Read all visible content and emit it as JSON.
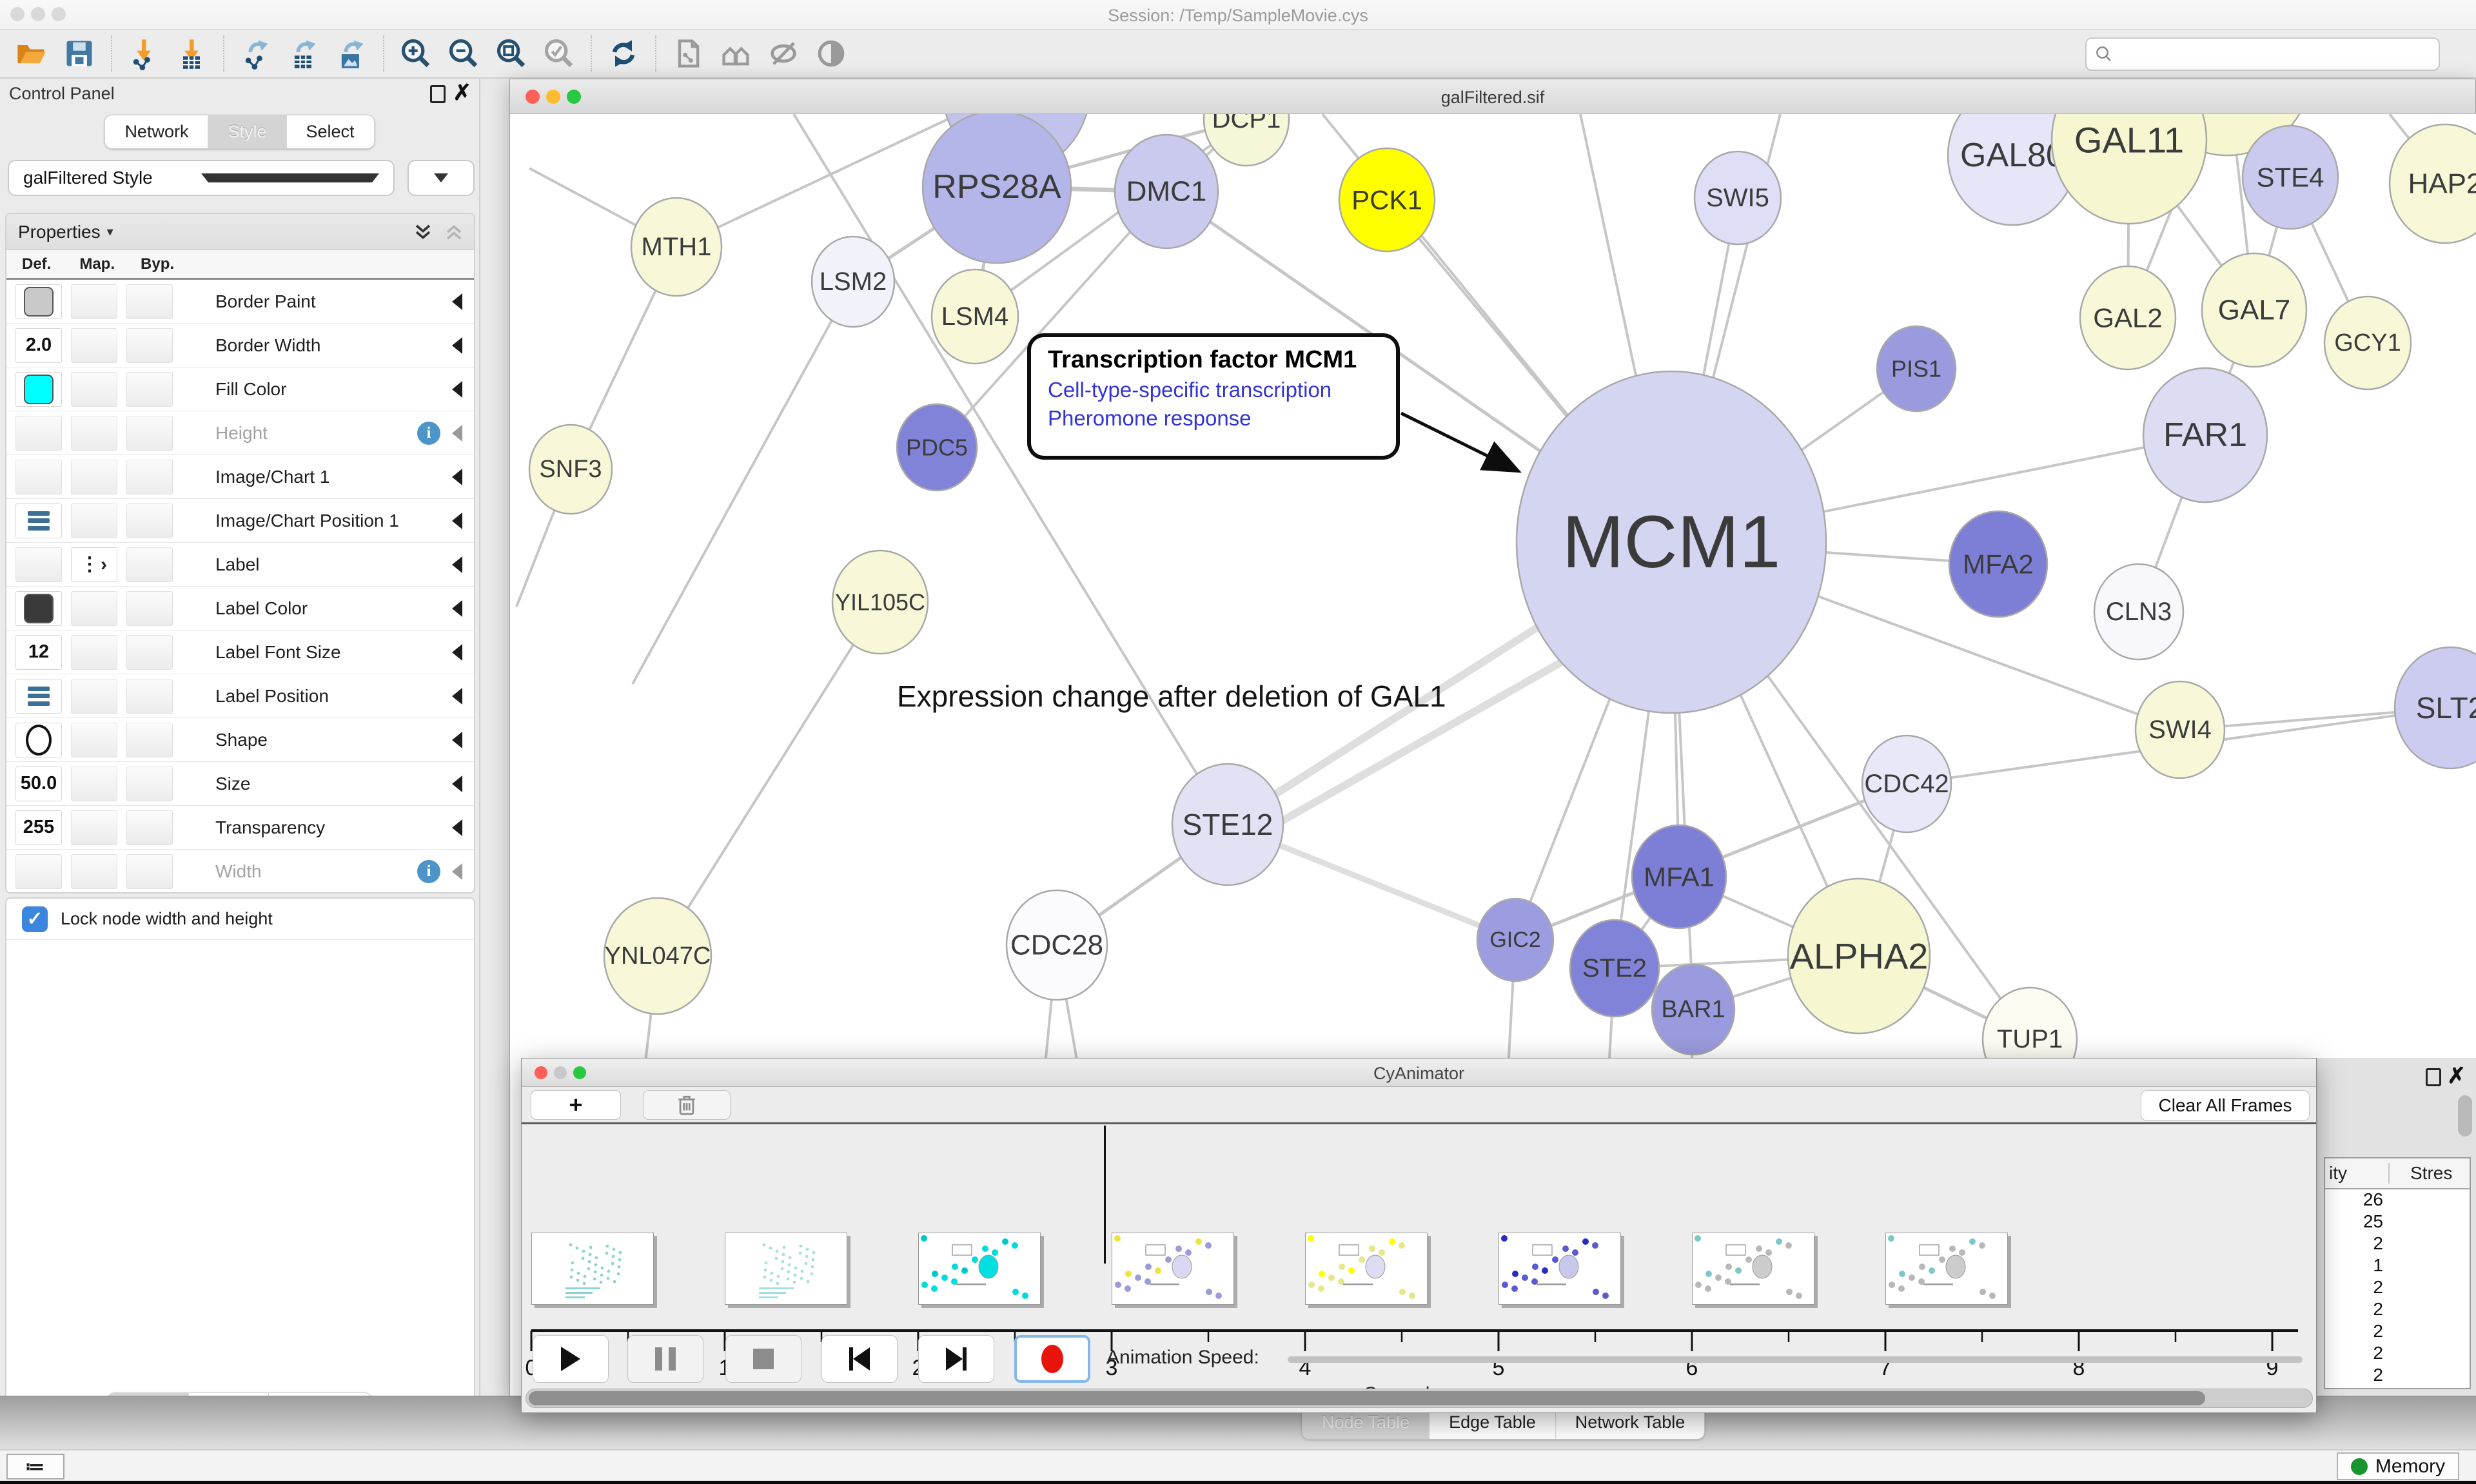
{
  "app": {
    "session_title": "Session: /Temp/SampleMovie.cys"
  },
  "toolbar": {
    "groups": [
      [
        "open-folder",
        "save"
      ],
      [
        "import-network",
        "import-table"
      ],
      [
        "export-network",
        "export-table",
        "export-image"
      ],
      [
        "zoom-in",
        "zoom-out",
        "zoom-fit",
        "zoom-selected"
      ],
      [
        "refresh"
      ],
      [
        "snapshot",
        "group-nodes",
        "hide-graphics",
        "show-graphics"
      ]
    ],
    "search_placeholder": ""
  },
  "control_panel": {
    "title": "Control Panel",
    "tabs": [
      "Network",
      "Style",
      "Select"
    ],
    "selected_tab": "Style",
    "style_name": "galFiltered Style",
    "properties": {
      "header": "Properties",
      "columns": [
        "Def.",
        "Map.",
        "Byp."
      ],
      "rows": [
        {
          "label": "Border Paint",
          "def": {
            "type": "swatch",
            "value": "#c9c9c9"
          }
        },
        {
          "label": "Border Width",
          "def": {
            "type": "text",
            "value": "2.0"
          }
        },
        {
          "label": "Fill Color",
          "def": {
            "type": "swatch",
            "value": "#00FFFF"
          }
        },
        {
          "label": "Height",
          "muted": true,
          "info": true
        },
        {
          "label": "Image/Chart 1"
        },
        {
          "label": "Image/Chart Position 1",
          "def": {
            "type": "position"
          }
        },
        {
          "label": "Label",
          "map": {
            "type": "discrete"
          }
        },
        {
          "label": "Label Color",
          "def": {
            "type": "swatch",
            "value": "#3a3a3a"
          }
        },
        {
          "label": "Label Font Size",
          "def": {
            "type": "text",
            "value": "12"
          }
        },
        {
          "label": "Label Position",
          "def": {
            "type": "position"
          }
        },
        {
          "label": "Shape",
          "def": {
            "type": "ellipse"
          }
        },
        {
          "label": "Size",
          "def": {
            "type": "text",
            "value": "50.0"
          }
        },
        {
          "label": "Transparency",
          "def": {
            "type": "text",
            "value": "255"
          }
        },
        {
          "label": "Width",
          "muted": true,
          "info": true
        }
      ],
      "lock_label": "Lock node width and height"
    },
    "bottom_tabs": [
      "Node",
      "Edge",
      "Network"
    ],
    "selected_bottom_tab": "Node"
  },
  "network_window": {
    "title": "galFiltered.sif",
    "annotation": {
      "title": "Transcription factor MCM1",
      "links": [
        "Cell-type-specific transcription",
        "Pheromone response"
      ]
    },
    "caption": "Expression change after deletion of GAL1",
    "label_color": "#3b3b3b",
    "edge_color": "#c6c6c6",
    "thick_edge_color": "#dedede",
    "nodes": [
      [
        "",
        1575,
        134,
        115,
        130,
        "#c2c3ec",
        0
      ],
      [
        "RPS28A",
        1545,
        289,
        115,
        118,
        "#b4b5e8",
        52
      ],
      [
        "DMC1",
        1808,
        296,
        80,
        88,
        "#c9caee",
        44
      ],
      [
        "DCP1",
        1932,
        184,
        66,
        72,
        "#f6f6d8",
        40
      ],
      [
        "PCK1",
        2150,
        309,
        74,
        80,
        "#ffff00",
        42
      ],
      [
        "SWI5",
        2694,
        306,
        67,
        72,
        "#dedef6",
        40
      ],
      [
        "MTH1",
        1048,
        382,
        70,
        76,
        "#f8f8d8",
        40
      ],
      [
        "LSM2",
        1322,
        436,
        64,
        70,
        "#f2f2fa",
        40
      ],
      [
        "LSM4",
        1511,
        490,
        67,
        73,
        "#f8f8d8",
        40
      ],
      [
        "SNF3",
        884,
        727,
        64,
        69,
        "#f8f8d8",
        38
      ],
      [
        "PDC5",
        1452,
        693,
        62,
        67,
        "#8183d8",
        36
      ],
      [
        "YIL105C",
        1364,
        933,
        74,
        80,
        "#f8f8d8",
        36
      ],
      [
        "",
        3453,
        110,
        130,
        130,
        "#f6f6d0",
        0
      ],
      [
        "GAL80",
        3120,
        240,
        100,
        108,
        "#e6e6f8",
        52
      ],
      [
        "GAL11",
        3301,
        216,
        120,
        130,
        "#f6f6d0",
        56
      ],
      [
        "STE4",
        3551,
        274,
        74,
        80,
        "#c9caee",
        42
      ],
      [
        "HAP2",
        3791,
        284,
        86,
        92,
        "#f8f8d8",
        44
      ],
      [
        "GAL2",
        3299,
        492,
        74,
        80,
        "#f8f8d8",
        42
      ],
      [
        "GAL7",
        3495,
        480,
        81,
        88,
        "#f8f8d8",
        44
      ],
      [
        "GCY1",
        3671,
        531,
        67,
        72,
        "#f8f8d8",
        38
      ],
      [
        "PIS1",
        2971,
        571,
        61,
        66,
        "#9a9ade",
        36
      ],
      [
        "FAR1",
        3419,
        674,
        96,
        104,
        "#dcdcf3",
        52
      ],
      [
        "MCM1",
        2591,
        840,
        240,
        265,
        "#d4d5f0",
        115
      ],
      [
        "MFA2",
        3098,
        874,
        76,
        82,
        "#7d7ed6",
        42
      ],
      [
        "CLN3",
        3316,
        948,
        69,
        74,
        "#f8f8fc",
        40
      ],
      [
        "SWI4",
        3380,
        1131,
        69,
        75,
        "#f8f8d8",
        40
      ],
      [
        "SLT2",
        3799,
        1097,
        86,
        94,
        "#ccccf0",
        46
      ],
      [
        "CDC42",
        2956,
        1215,
        69,
        75,
        "#e8e8f8",
        40
      ],
      [
        "STE12",
        1903,
        1278,
        86,
        94,
        "#e2e2f4",
        46
      ],
      [
        "CDC28",
        1638,
        1465,
        78,
        85,
        "#fbfbfd",
        44
      ],
      [
        "YNL047C",
        1019,
        1482,
        83,
        90,
        "#f8f8d8",
        38
      ],
      [
        "GIC2",
        2349,
        1457,
        59,
        64,
        "#9c9ce0",
        34
      ],
      [
        "STE2",
        2503,
        1501,
        69,
        75,
        "#8183d8",
        40
      ],
      [
        "MFA1",
        2603,
        1359,
        73,
        80,
        "#7d7ed6",
        42
      ],
      [
        "BAR1",
        2625,
        1565,
        64,
        70,
        "#9a9ade",
        38
      ],
      [
        "ALPHA2",
        2882,
        1482,
        110,
        120,
        "#f6f6d0",
        56
      ],
      [
        "TUP1",
        3147,
        1611,
        73,
        80,
        "#fcfcf2",
        40
      ]
    ],
    "edges": [
      [
        1903,
        1278,
        2591,
        840,
        12
      ],
      [
        1930,
        1305,
        2660,
        890,
        12
      ],
      [
        1903,
        1278,
        2349,
        1457,
        9
      ],
      [
        2591,
        840,
        2694,
        306,
        4
      ],
      [
        2591,
        840,
        1808,
        296,
        5
      ],
      [
        2591,
        840,
        2150,
        309,
        4
      ],
      [
        2591,
        840,
        2450,
        176,
        4
      ],
      [
        2591,
        840,
        2760,
        176,
        4
      ],
      [
        2591,
        840,
        2050,
        176,
        4
      ],
      [
        2591,
        840,
        3419,
        674,
        4
      ],
      [
        2591,
        840,
        3098,
        874,
        4
      ],
      [
        2591,
        840,
        3380,
        1131,
        4
      ],
      [
        2591,
        840,
        2603,
        1359,
        4
      ],
      [
        2591,
        840,
        2882,
        1482,
        4
      ],
      [
        2591,
        840,
        2503,
        1501,
        4
      ],
      [
        2591,
        840,
        2625,
        1565,
        4
      ],
      [
        2591,
        840,
        2349,
        1457,
        4
      ],
      [
        2591,
        840,
        2971,
        571,
        4
      ],
      [
        2591,
        840,
        3147,
        1611,
        4
      ],
      [
        1545,
        289,
        1322,
        436,
        5
      ],
      [
        1545,
        289,
        1511,
        490,
        5
      ],
      [
        1545,
        289,
        1932,
        184,
        5
      ],
      [
        1545,
        289,
        1575,
        134,
        5
      ],
      [
        1545,
        289,
        1808,
        296,
        7
      ],
      [
        1932,
        184,
        1511,
        490,
        4
      ],
      [
        1932,
        184,
        1808,
        296,
        4
      ],
      [
        1452,
        693,
        1808,
        296,
        4
      ],
      [
        1048,
        382,
        884,
        727,
        4
      ],
      [
        1048,
        382,
        1575,
        134,
        4
      ],
      [
        1048,
        382,
        820,
        260,
        4
      ],
      [
        1322,
        436,
        980,
        1060,
        4
      ],
      [
        884,
        727,
        800,
        940,
        4
      ],
      [
        1364,
        933,
        1019,
        1482,
        4
      ],
      [
        1019,
        1482,
        940,
        2165,
        4
      ],
      [
        1638,
        1465,
        1903,
        1278,
        5
      ],
      [
        1638,
        1465,
        1570,
        2165,
        4
      ],
      [
        1638,
        1465,
        1760,
        2165,
        4
      ],
      [
        3301,
        216,
        3299,
        492,
        4
      ],
      [
        3301,
        216,
        3495,
        480,
        4
      ],
      [
        3453,
        110,
        3495,
        480,
        4
      ],
      [
        3453,
        110,
        3299,
        492,
        4
      ],
      [
        3453,
        110,
        3551,
        274,
        4
      ],
      [
        3551,
        274,
        3495,
        480,
        4
      ],
      [
        3551,
        274,
        3671,
        531,
        4
      ],
      [
        3120,
        240,
        3300,
        130,
        4
      ],
      [
        3120,
        240,
        3060,
        176,
        4
      ],
      [
        3791,
        284,
        3705,
        176,
        4
      ],
      [
        3791,
        284,
        3840,
        210,
        4
      ],
      [
        3495,
        480,
        3419,
        674,
        4
      ],
      [
        3419,
        674,
        3316,
        948,
        4
      ],
      [
        2956,
        1215,
        2349,
        1457,
        5
      ],
      [
        2956,
        1215,
        2882,
        1482,
        4
      ],
      [
        2956,
        1215,
        3799,
        1097,
        4
      ],
      [
        3380,
        1131,
        3799,
        1097,
        4
      ],
      [
        2882,
        1482,
        3147,
        1611,
        5
      ],
      [
        2882,
        1482,
        2603,
        1359,
        4
      ],
      [
        2882,
        1482,
        2503,
        1501,
        4
      ],
      [
        2882,
        1482,
        2625,
        1565,
        4
      ],
      [
        2603,
        1359,
        2503,
        1501,
        4
      ],
      [
        2349,
        1457,
        2310,
        2165,
        4
      ],
      [
        2503,
        1501,
        2465,
        2165,
        4
      ],
      [
        2625,
        1565,
        2610,
        2165,
        4
      ],
      [
        1230,
        176,
        1903,
        1278,
        4
      ]
    ],
    "annotation_arrow": [
      2172,
      640,
      2350,
      728
    ]
  },
  "cyanimator": {
    "title": "CyAnimator",
    "add_frame_label": "+",
    "clear_button_label": "Clear All Frames",
    "speed_label": "Animation Speed:",
    "unit_label": "Seconds",
    "seconds": [
      0,
      1,
      2,
      3,
      4,
      5,
      6,
      7,
      8,
      9
    ],
    "playback_buttons": [
      "play",
      "pause",
      "stop",
      "skip-back",
      "skip-forward",
      "record"
    ],
    "frames": [
      {
        "second": 0,
        "style": "overview",
        "dot": "#8fd2d2",
        "center": "#bfe8e8",
        "accent": "#8fd2d2"
      },
      {
        "second": 1,
        "style": "overview",
        "dot": "#a8dede",
        "center": "#cdeeee",
        "accent": "#a8dede"
      },
      {
        "second": 2,
        "style": "zoom",
        "dot": "#00dcdc",
        "center": "#00e0e0",
        "accent": "#00c8c8"
      },
      {
        "second": 3,
        "style": "zoom",
        "dot": "#9b9bd8",
        "center": "#d8d8f2",
        "accent": "#eee23c"
      },
      {
        "second": 4,
        "style": "zoom",
        "dot": "#e6e68a",
        "center": "#dcdcf2",
        "accent": "#ffff00"
      },
      {
        "second": 5,
        "style": "zoom",
        "dot": "#5a5ace",
        "center": "#c8c8ec",
        "accent": "#2a2ac0"
      },
      {
        "second": 6,
        "style": "zoom",
        "dot": "#b8b8b8",
        "center": "#cccccc",
        "accent": "#7cc8c8"
      },
      {
        "second": 7,
        "style": "zoom",
        "dot": "#b8b8b8",
        "center": "#cccccc",
        "accent": "#7cc8c8"
      }
    ]
  },
  "table_panel": {
    "columns": [
      "ity",
      "Stres"
    ],
    "rows": [
      "26",
      "25",
      "2",
      "1",
      "2",
      "2",
      "2",
      "2",
      "2"
    ]
  },
  "bottom_bar": {
    "tabs": [
      "Node Table",
      "Edge Table",
      "Network Table"
    ],
    "selected": "Node Table"
  },
  "status_bar": {
    "memory_label": "Memory"
  }
}
